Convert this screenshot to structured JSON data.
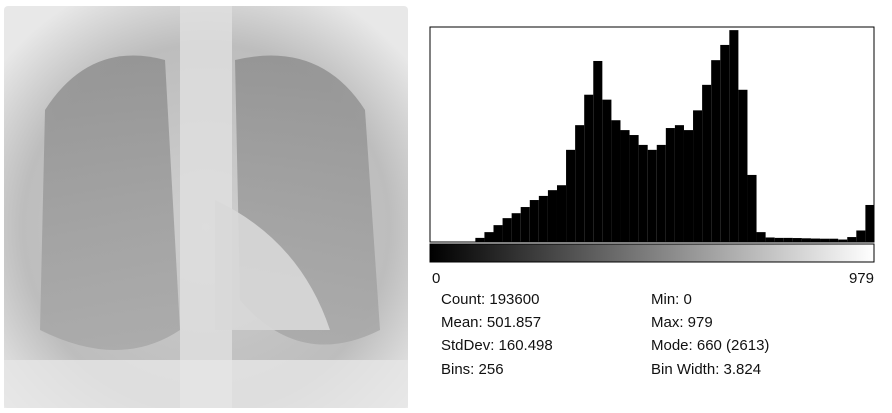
{
  "chart_data": {
    "type": "histogram",
    "bins": [
      0,
      20,
      40,
      60,
      80,
      100,
      120,
      140,
      160,
      180,
      200,
      220,
      240,
      260,
      280,
      300,
      320,
      340,
      360,
      380,
      400,
      420,
      440,
      460,
      480,
      500,
      520,
      540,
      560,
      580,
      600,
      620,
      640,
      660,
      680,
      700,
      720,
      740,
      760,
      780,
      800,
      820,
      840,
      860,
      880,
      900,
      920,
      940,
      960,
      979
    ],
    "values": [
      0,
      0,
      0,
      0,
      0,
      50,
      120,
      205,
      290,
      350,
      425,
      510,
      560,
      630,
      690,
      1120,
      1420,
      1790,
      2200,
      1730,
      1480,
      1360,
      1300,
      1180,
      1120,
      1180,
      1385,
      1420,
      1360,
      1600,
      1910,
      2210,
      2395,
      2575,
      1850,
      815,
      120,
      55,
      50,
      50,
      48,
      45,
      42,
      40,
      40,
      30,
      60,
      140,
      450
    ],
    "color": "#000000",
    "xlim": [
      0,
      979
    ],
    "xticks": [
      0,
      979
    ],
    "ylim": [
      0,
      2613
    ]
  },
  "stats": {
    "count": "Count: 193600",
    "mean": "Mean: 501.857",
    "stddev": "StdDev: 160.498",
    "bins": "Bins: 256",
    "min": "Min: 0",
    "max": "Max: 979",
    "mode": "Mode: 660 (2613)",
    "bin_width": "Bin Width: 3.824"
  }
}
